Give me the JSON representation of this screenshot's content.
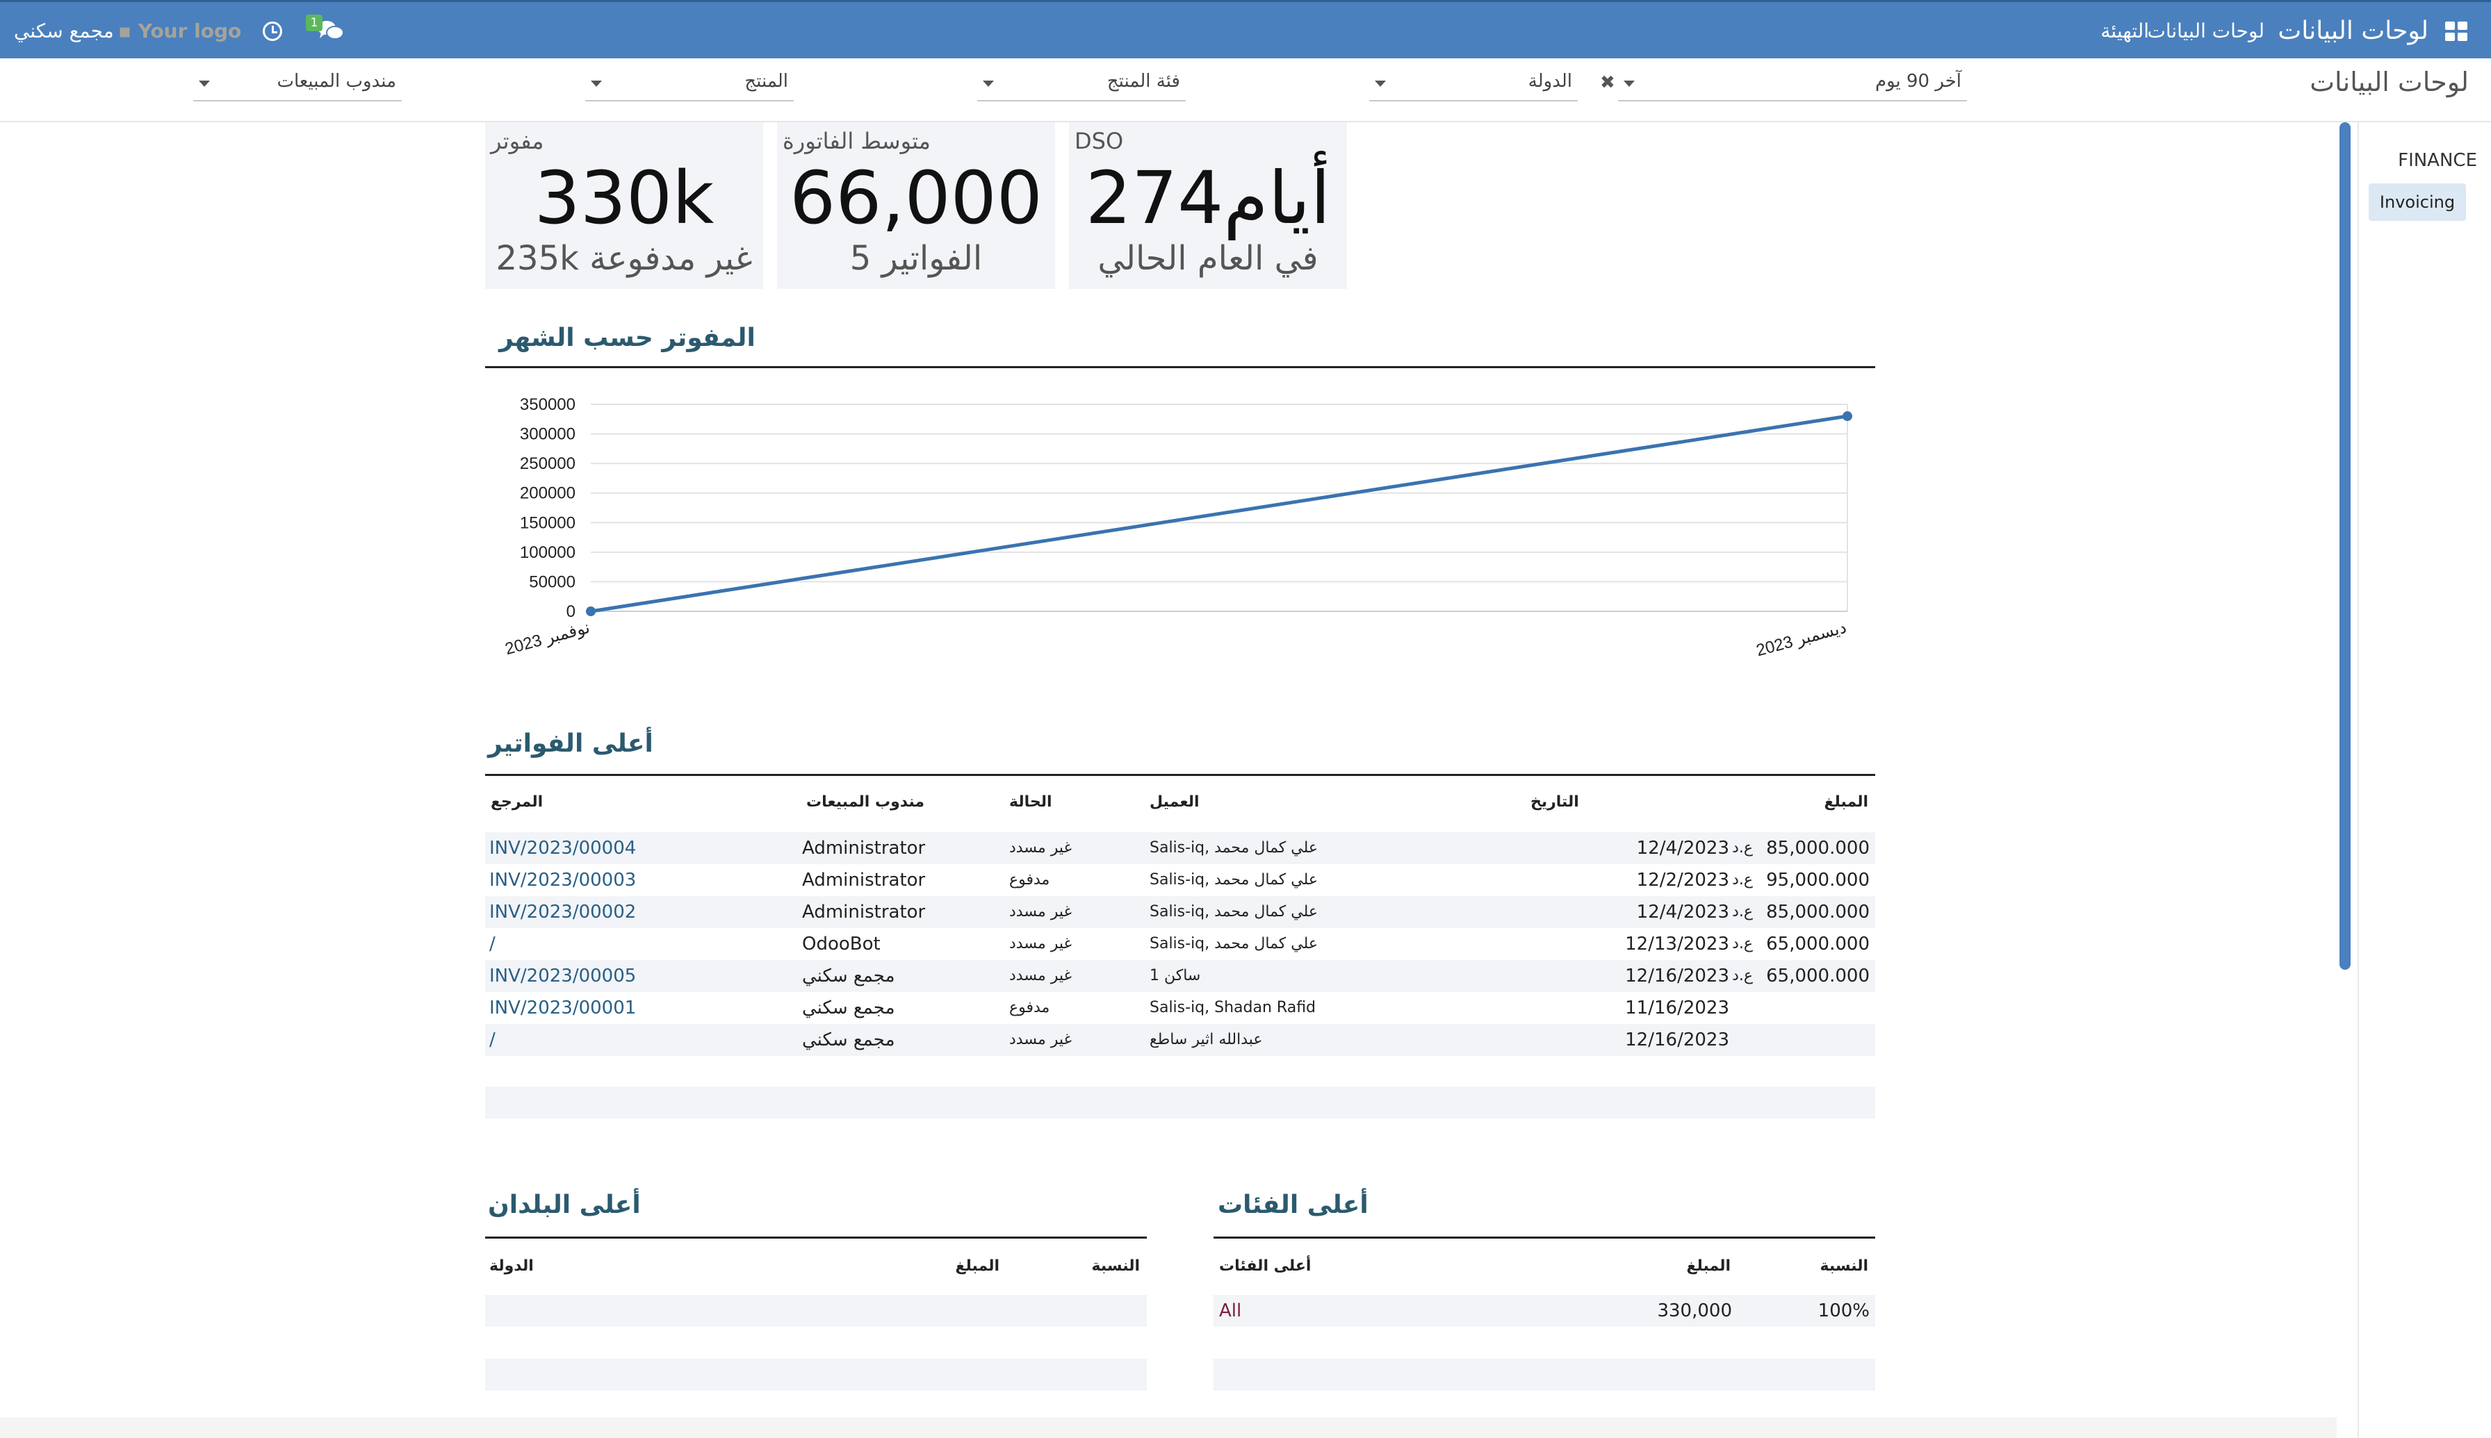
{
  "navbar": {
    "brand": "لوحات البيانات",
    "menu_dashboards": "لوحات البيانات",
    "menu_config": "التهيئة",
    "messages_badge": "1",
    "logo_text": "Your logo",
    "company": "مجمع سكني",
    "accent": "#4a80bd"
  },
  "control_panel": {
    "breadcrumb": "لوحات البيانات",
    "filters": [
      {
        "label": "آخر 90 يوم"
      },
      {
        "label": "الدولة"
      },
      {
        "label": "فئة المنتج"
      },
      {
        "label": "المنتج"
      },
      {
        "label": "مندوب المبيعات"
      }
    ]
  },
  "side_menu": {
    "section": "FINANCE",
    "active_item": "Invoicing"
  },
  "kpis": [
    {
      "title": "DSO",
      "value": "274أيام",
      "sub": "في العام الحالي"
    },
    {
      "title": "متوسط الفاتورة",
      "value": "66,000",
      "sub": "5 الفواتير"
    },
    {
      "title": "مفوتر",
      "value": "330k",
      "sub": "235k غير مدفوعة"
    }
  ],
  "chart_section": {
    "title": "المفوتر حسب الشهر"
  },
  "chart_data": {
    "type": "line",
    "categories": [
      "نوفمبر 2023",
      "ديسمبر 2023"
    ],
    "series": [
      {
        "values": [
          0,
          330000
        ]
      }
    ],
    "yticks": [
      "350000",
      "300000",
      "250000",
      "200000",
      "150000",
      "100000",
      "50000",
      "0"
    ],
    "ylim": [
      0,
      350000
    ],
    "grid": true,
    "color": "#3a73b0"
  },
  "invoices": {
    "title": "أعلى الفواتير",
    "headers": {
      "amount": "المبلغ",
      "date": "التاريخ",
      "customer": "العميل",
      "status": "الحالة",
      "salesperson": "مندوب المبيعات",
      "reference": "المرجع"
    },
    "rows": [
      {
        "amount": "85,000.000",
        "currency": "ع.د",
        "date": "12/4/2023",
        "customer": "Salis-iq, علي كمال محمد",
        "status": "غير مسدد",
        "salesperson": "Administrator",
        "reference": "INV/2023/00004"
      },
      {
        "amount": "95,000.000",
        "currency": "ع.د",
        "date": "12/2/2023",
        "customer": "Salis-iq, علي كمال محمد",
        "status": "مدفوع",
        "salesperson": "Administrator",
        "reference": "INV/2023/00003"
      },
      {
        "amount": "85,000.000",
        "currency": "ع.د",
        "date": "12/4/2023",
        "customer": "Salis-iq, علي كمال محمد",
        "status": "غير مسدد",
        "salesperson": "Administrator",
        "reference": "INV/2023/00002"
      },
      {
        "amount": "65,000.000",
        "currency": "ع.د",
        "date": "12/13/2023",
        "customer": "Salis-iq, علي كمال محمد",
        "status": "غير مسدد",
        "salesperson": "OdooBot",
        "reference": "/"
      },
      {
        "amount": "65,000.000",
        "currency": "ع.د",
        "date": "12/16/2023",
        "customer": "ساكن 1",
        "status": "غير مسدد",
        "salesperson": "مجمع سكني",
        "reference": "INV/2023/00005"
      },
      {
        "amount": "",
        "currency": "",
        "date": "11/16/2023",
        "customer": "Salis-iq, Shadan Rafid",
        "status": "مدفوع",
        "salesperson": "مجمع سكني",
        "reference": "INV/2023/00001"
      },
      {
        "amount": "",
        "currency": "",
        "date": "12/16/2023",
        "customer": "عبدالله اثير ساطع",
        "status": "غير مسدد",
        "salesperson": "مجمع سكني",
        "reference": "/"
      }
    ]
  },
  "categories_table": {
    "title": "أعلى الفئات",
    "headers": {
      "ratio": "النسبة",
      "amount": "المبلغ",
      "category": "أعلى الفئات"
    },
    "rows": [
      {
        "ratio": "100%",
        "amount": "330,000",
        "category": "All"
      }
    ]
  },
  "countries_table": {
    "title": "أعلى البلدان",
    "headers": {
      "ratio": "النسبة",
      "amount": "المبلغ",
      "country": "الدولة"
    }
  }
}
